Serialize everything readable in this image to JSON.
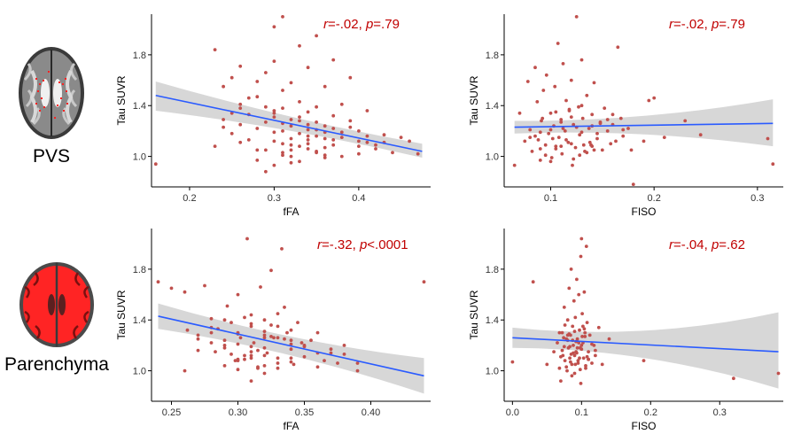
{
  "row_labels": [
    "PVS",
    "Parenchyma"
  ],
  "colors": {
    "point": "#c0504d",
    "fit_line": "#2a5bff",
    "ci_band": "#d3d3d3",
    "annotation": "#c00000",
    "axis": "#000000",
    "tick_text": "#333333",
    "brain_highlight": "#ff2020"
  },
  "brain_images": [
    {
      "row": "PVS",
      "icon": "brain-axial-slice-icon"
    },
    {
      "row": "Parenchyma",
      "icon": "brain-parenchyma-mask-icon"
    }
  ],
  "chart_data": [
    {
      "id": "pvs-ffa",
      "type": "scatter",
      "title": "",
      "xlabel": "fFA",
      "ylabel": "Tau SUVR",
      "xlim": [
        0.155,
        0.485
      ],
      "ylim": [
        0.76,
        2.12
      ],
      "xticks": [
        0.2,
        0.3,
        0.4
      ],
      "xtick_labels": [
        "0.2",
        "0.3",
        "0.4"
      ],
      "yticks": [
        1.0,
        1.4,
        1.8
      ],
      "ytick_labels": [
        "1.0",
        "1.4",
        "1.8"
      ],
      "annotation": {
        "r_symbol": "r",
        "r_value": "=-.02, ",
        "p_symbol": "p",
        "p_value": "=.79"
      },
      "fit": {
        "x": [
          0.16,
          0.475
        ],
        "y": [
          1.48,
          1.04
        ],
        "ci_low": [
          1.36,
          0.99
        ],
        "ci_high": [
          1.59,
          1.1
        ]
      },
      "x": [
        0.16,
        0.23,
        0.23,
        0.24,
        0.25,
        0.25,
        0.26,
        0.26,
        0.26,
        0.27,
        0.27,
        0.28,
        0.28,
        0.29,
        0.29,
        0.29,
        0.3,
        0.3,
        0.3,
        0.3,
        0.31,
        0.31,
        0.31,
        0.31,
        0.32,
        0.32,
        0.32,
        0.33,
        0.33,
        0.33,
        0.34,
        0.34,
        0.34,
        0.35,
        0.35,
        0.35,
        0.36,
        0.36,
        0.36,
        0.37,
        0.37,
        0.37,
        0.38,
        0.38,
        0.39,
        0.39,
        0.4,
        0.4,
        0.41,
        0.41,
        0.42,
        0.43,
        0.44,
        0.45,
        0.46,
        0.47,
        0.3,
        0.31,
        0.32,
        0.33,
        0.34,
        0.35,
        0.36,
        0.37,
        0.28,
        0.29,
        0.27,
        0.26,
        0.25,
        0.24,
        0.33,
        0.34,
        0.35,
        0.36,
        0.32,
        0.31,
        0.3,
        0.29,
        0.38,
        0.39,
        0.4,
        0.41,
        0.42,
        0.43,
        0.28,
        0.31,
        0.33,
        0.35,
        0.37,
        0.3,
        0.32,
        0.34,
        0.36,
        0.24,
        0.26,
        0.28,
        0.3,
        0.32,
        0.34,
        0.36,
        0.38,
        0.4,
        0.33,
        0.34,
        0.35,
        0.31,
        0.32
      ],
      "y": [
        0.94,
        1.84,
        1.08,
        1.55,
        1.62,
        1.34,
        1.71,
        1.25,
        1.38,
        1.13,
        1.46,
        1.22,
        1.59,
        1.66,
        1.39,
        1.05,
        2.02,
        1.75,
        1.31,
        1.12,
        2.1,
        1.52,
        1.26,
        1.01,
        1.58,
        1.29,
        1.14,
        1.87,
        1.43,
        1.18,
        1.7,
        1.35,
        1.06,
        1.95,
        1.39,
        1.21,
        1.55,
        1.24,
        0.99,
        1.76,
        1.32,
        1.09,
        1.41,
        1.15,
        1.62,
        1.28,
        1.2,
        1.02,
        1.36,
        1.11,
        1.06,
        1.17,
        1.03,
        1.15,
        1.12,
        1.02,
        1.34,
        1.38,
        1.24,
        1.28,
        1.1,
        1.16,
        1.19,
        1.22,
        1.05,
        1.27,
        1.33,
        1.41,
        1.18,
        1.29,
        1.08,
        1.13,
        1.03,
        1.14,
        1.0,
        1.2,
        0.93,
        0.88,
        1.19,
        1.23,
        1.08,
        1.16,
        1.09,
        1.11,
        1.47,
        1.03,
        1.31,
        1.27,
        1.13,
        1.36,
        1.05,
        1.16,
        1.01,
        1.23,
        1.11,
        0.97,
        1.19,
        1.09,
        1.21,
        1.07,
        1.0,
        1.12,
        0.96,
        1.25,
        1.04,
        1.1,
        0.95
      ]
    },
    {
      "id": "pvs-fiso",
      "type": "scatter",
      "title": "",
      "xlabel": "FISO",
      "ylabel": "Tau SUVR",
      "xlim": [
        0.055,
        0.325
      ],
      "ylim": [
        0.76,
        2.12
      ],
      "xticks": [
        0.1,
        0.2,
        0.3
      ],
      "xtick_labels": [
        "0.1",
        "0.2",
        "0.3"
      ],
      "yticks": [
        1.0,
        1.4,
        1.8
      ],
      "ytick_labels": [
        "1.0",
        "1.4",
        "1.8"
      ],
      "annotation": {
        "r_symbol": "r",
        "r_value": "=-.02, ",
        "p_symbol": "p",
        "p_value": "=.79"
      },
      "fit": {
        "x": [
          0.065,
          0.315
        ],
        "y": [
          1.23,
          1.26
        ],
        "ci_low": [
          1.18,
          1.08
        ],
        "ci_high": [
          1.28,
          1.45
        ]
      },
      "x": [
        0.065,
        0.07,
        0.075,
        0.078,
        0.08,
        0.082,
        0.085,
        0.087,
        0.088,
        0.09,
        0.091,
        0.093,
        0.095,
        0.096,
        0.098,
        0.1,
        0.101,
        0.103,
        0.104,
        0.105,
        0.107,
        0.108,
        0.11,
        0.111,
        0.112,
        0.114,
        0.115,
        0.117,
        0.118,
        0.12,
        0.121,
        0.122,
        0.124,
        0.125,
        0.127,
        0.128,
        0.13,
        0.131,
        0.133,
        0.135,
        0.137,
        0.139,
        0.14,
        0.142,
        0.145,
        0.148,
        0.15,
        0.152,
        0.155,
        0.158,
        0.16,
        0.163,
        0.165,
        0.168,
        0.17,
        0.175,
        0.178,
        0.18,
        0.19,
        0.195,
        0.2,
        0.21,
        0.23,
        0.245,
        0.31,
        0.315,
        0.1,
        0.11,
        0.12,
        0.13,
        0.09,
        0.14,
        0.085,
        0.095,
        0.105,
        0.115,
        0.125,
        0.135,
        0.145,
        0.155,
        0.1,
        0.12,
        0.13,
        0.11,
        0.09,
        0.14,
        0.16,
        0.17,
        0.08,
        0.105,
        0.118,
        0.128,
        0.138,
        0.148,
        0.092,
        0.102,
        0.112,
        0.122,
        0.132,
        0.142
      ],
      "y": [
        0.93,
        1.34,
        1.12,
        1.59,
        1.21,
        1.04,
        1.7,
        1.43,
        1.13,
        0.97,
        1.28,
        1.52,
        1.09,
        1.64,
        1.18,
        1.34,
        0.99,
        1.24,
        1.55,
        1.08,
        1.89,
        1.15,
        1.29,
        1.02,
        1.73,
        1.2,
        1.44,
        1.11,
        1.36,
        1.6,
        0.93,
        1.25,
        1.07,
        2.1,
        1.39,
        1.17,
        1.76,
        1.3,
        1.04,
        1.48,
        1.22,
        1.09,
        1.33,
        1.58,
        1.14,
        1.27,
        1.05,
        1.38,
        1.2,
        1.1,
        1.25,
        1.12,
        1.86,
        1.3,
        1.16,
        1.22,
        1.05,
        0.78,
        1.12,
        1.44,
        1.46,
        1.15,
        1.28,
        1.17,
        1.14,
        0.94,
        1.21,
        1.08,
        1.31,
        1.19,
        1.06,
        1.24,
        1.16,
        1.01,
        1.35,
        1.13,
        1.23,
        1.03,
        1.18,
        1.29,
        0.96,
        1.1,
        1.4,
        1.27,
        1.19,
        1.08,
        1.33,
        1.21,
        1.15,
        1.06,
        1.37,
        1.01,
        1.11,
        1.26,
        1.3,
        1.14,
        1.22,
        0.98,
        1.09,
        1.05
      ]
    },
    {
      "id": "parenchyma-ffa",
      "type": "scatter",
      "title": "",
      "xlabel": "fFA",
      "ylabel": "Tau SUVR",
      "xlim": [
        0.235,
        0.445
      ],
      "ylim": [
        0.76,
        2.12
      ],
      "xticks": [
        0.25,
        0.3,
        0.35,
        0.4
      ],
      "xtick_labels": [
        "0.25",
        "0.30",
        "0.35",
        "0.40"
      ],
      "yticks": [
        1.0,
        1.4,
        1.8
      ],
      "ytick_labels": [
        "1.0",
        "1.4",
        "1.8"
      ],
      "annotation": {
        "r_symbol": "r",
        "r_value": "=-.32, ",
        "p_symbol": "p",
        "p_value": "<.0001"
      },
      "fit": {
        "x": [
          0.24,
          0.44
        ],
        "y": [
          1.43,
          0.96
        ],
        "ci_low": [
          1.33,
          0.82
        ],
        "ci_high": [
          1.53,
          1.1
        ]
      },
      "x": [
        0.24,
        0.25,
        0.26,
        0.262,
        0.27,
        0.275,
        0.28,
        0.283,
        0.285,
        0.29,
        0.292,
        0.295,
        0.298,
        0.3,
        0.302,
        0.305,
        0.307,
        0.31,
        0.312,
        0.315,
        0.317,
        0.32,
        0.322,
        0.325,
        0.327,
        0.33,
        0.333,
        0.335,
        0.337,
        0.34,
        0.342,
        0.345,
        0.348,
        0.35,
        0.355,
        0.36,
        0.365,
        0.37,
        0.375,
        0.38,
        0.39,
        0.44,
        0.29,
        0.3,
        0.31,
        0.32,
        0.33,
        0.34,
        0.3,
        0.31,
        0.32,
        0.315,
        0.325,
        0.305,
        0.295,
        0.335,
        0.31,
        0.32,
        0.33,
        0.3,
        0.29,
        0.28,
        0.27,
        0.34,
        0.35,
        0.36,
        0.315,
        0.325,
        0.305,
        0.31,
        0.32,
        0.33,
        0.3,
        0.29,
        0.28,
        0.34,
        0.31,
        0.32,
        0.26,
        0.27,
        0.28,
        0.29,
        0.3,
        0.31,
        0.32,
        0.33,
        0.34,
        0.35,
        0.36,
        0.37,
        0.38,
        0.39,
        0.33,
        0.34,
        0.3,
        0.31,
        0.32
      ],
      "y": [
        1.7,
        1.65,
        1.62,
        1.32,
        1.25,
        1.67,
        1.41,
        1.15,
        1.33,
        1.2,
        1.51,
        1.38,
        1.08,
        1.6,
        1.26,
        1.12,
        2.04,
        1.44,
        1.22,
        1.02,
        1.66,
        1.31,
        1.14,
        1.79,
        1.26,
        1.1,
        1.96,
        1.5,
        1.3,
        1.17,
        1.05,
        1.38,
        1.22,
        1.11,
        1.24,
        1.3,
        1.08,
        1.17,
        1.06,
        1.2,
        1.0,
        1.7,
        1.4,
        1.29,
        1.19,
        1.04,
        1.35,
        1.21,
        1.01,
        1.12,
        0.98,
        1.16,
        1.27,
        1.09,
        1.13,
        1.25,
        1.37,
        1.18,
        1.06,
        1.3,
        1.24,
        1.34,
        1.28,
        1.1,
        1.2,
        1.14,
        1.03,
        1.36,
        1.42,
        1.15,
        1.26,
        1.02,
        1.08,
        1.18,
        1.22,
        1.32,
        1.1,
        1.4,
        1.0,
        1.16,
        1.3,
        1.04,
        1.21,
        1.35,
        1.12,
        1.26,
        1.07,
        1.19,
        1.03,
        1.14,
        1.13,
        1.06,
        1.45,
        1.24,
        1.09,
        0.92,
        1.28
      ]
    },
    {
      "id": "parenchyma-fiso",
      "type": "scatter",
      "title": "",
      "xlabel": "FISO",
      "ylabel": "Tau SUVR",
      "xlim": [
        -0.012,
        0.392
      ],
      "ylim": [
        0.76,
        2.12
      ],
      "xticks": [
        0.0,
        0.1,
        0.2,
        0.3
      ],
      "xtick_labels": [
        "0.0",
        "0.1",
        "0.2",
        "0.3"
      ],
      "yticks": [
        1.0,
        1.4,
        1.8
      ],
      "ytick_labels": [
        "1.0",
        "1.4",
        "1.8"
      ],
      "annotation": {
        "r_symbol": "r",
        "r_value": "=-.04, ",
        "p_symbol": "p",
        "p_value": "=.62"
      },
      "fit": {
        "x": [
          0.0,
          0.385
        ],
        "y": [
          1.26,
          1.15
        ],
        "ci_low": [
          1.18,
          0.86
        ],
        "ci_high": [
          1.34,
          1.46
        ]
      },
      "x": [
        0.0,
        0.03,
        0.05,
        0.06,
        0.065,
        0.068,
        0.07,
        0.072,
        0.073,
        0.075,
        0.076,
        0.078,
        0.079,
        0.08,
        0.081,
        0.082,
        0.083,
        0.084,
        0.085,
        0.086,
        0.087,
        0.088,
        0.089,
        0.09,
        0.091,
        0.092,
        0.093,
        0.094,
        0.095,
        0.096,
        0.097,
        0.098,
        0.099,
        0.1,
        0.101,
        0.102,
        0.103,
        0.104,
        0.105,
        0.106,
        0.107,
        0.108,
        0.11,
        0.112,
        0.115,
        0.118,
        0.12,
        0.125,
        0.13,
        0.14,
        0.19,
        0.32,
        0.385,
        0.07,
        0.075,
        0.08,
        0.085,
        0.09,
        0.095,
        0.1,
        0.105,
        0.11,
        0.115,
        0.072,
        0.078,
        0.082,
        0.088,
        0.092,
        0.098,
        0.102,
        0.108,
        0.074,
        0.084,
        0.094,
        0.104,
        0.086,
        0.096,
        0.106,
        0.076,
        0.09,
        0.1,
        0.08,
        0.11,
        0.12,
        0.068,
        0.093,
        0.099,
        0.087,
        0.083,
        0.091,
        0.097,
        0.101
      ],
      "y": [
        1.07,
        1.7,
        1.05,
        1.15,
        1.22,
        1.02,
        0.92,
        1.3,
        1.12,
        1.5,
        1.08,
        1.25,
        1.0,
        1.4,
        1.18,
        1.65,
        1.1,
        1.28,
        1.8,
        1.05,
        1.35,
        1.2,
        1.55,
        0.98,
        1.42,
        1.15,
        1.72,
        1.25,
        1.08,
        1.6,
        1.32,
        1.18,
        1.9,
        2.04,
        1.45,
        1.22,
        1.1,
        1.62,
        1.3,
        1.02,
        1.98,
        1.38,
        1.15,
        1.28,
        1.06,
        1.2,
        1.12,
        1.34,
        1.05,
        1.25,
        1.08,
        0.94,
        0.98,
        1.11,
        1.19,
        1.24,
        1.13,
        1.31,
        1.06,
        1.17,
        1.27,
        1.09,
        1.21,
        1.16,
        1.03,
        1.29,
        1.14,
        1.23,
        1.01,
        1.35,
        1.11,
        1.26,
        1.07,
        1.18,
        1.33,
        0.96,
        1.22,
        1.04,
        1.36,
        1.12,
        1.2,
        1.28,
        1.09,
        1.16,
        1.3,
        1.14,
        0.9,
        1.24,
        1.19,
        1.05,
        1.1,
        1.27
      ]
    }
  ]
}
